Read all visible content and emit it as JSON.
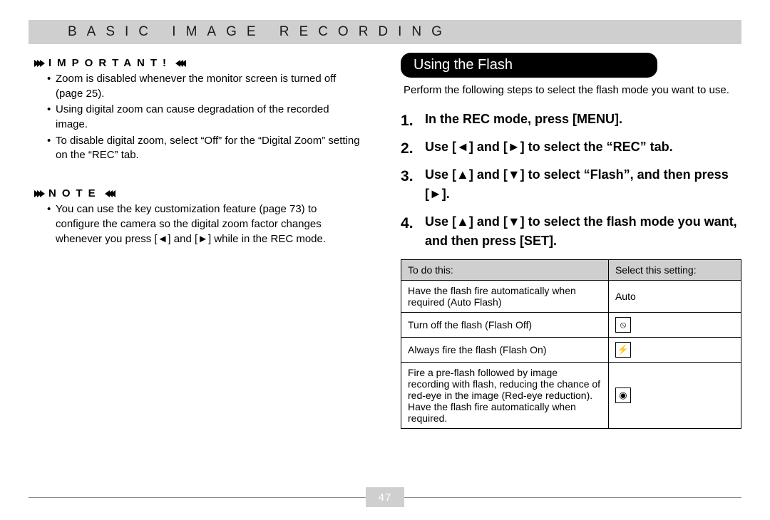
{
  "header": {
    "text": "BASIC IMAGE RECORDING"
  },
  "left": {
    "important": {
      "label": "IMPORTANT!",
      "items": [
        "Zoom is disabled whenever the monitor screen is turned off (page 25).",
        "Using digital zoom can cause degradation of the recorded image.",
        "To disable digital zoom, select “Off” for the “Digital Zoom” setting on the “REC” tab."
      ]
    },
    "note": {
      "label": "NOTE",
      "items": [
        "You can use the key customization feature (page 73) to configure the camera so the digital zoom factor changes whenever you press [◄] and [►] while in the REC mode."
      ]
    }
  },
  "right": {
    "section_title": "Using the Flash",
    "intro": "Perform the following steps to select the flash mode you want to use.",
    "steps": [
      "In the REC mode, press [MENU].",
      "Use [◄] and [►] to select the “REC” tab.",
      "Use [▲] and [▼] to select “Flash”, and then press [►].",
      "Use [▲] and [▼] to select the flash mode you want, and then press [SET]."
    ],
    "table": {
      "headers": [
        "To do this:",
        "Select this setting:"
      ],
      "rows": [
        {
          "desc": "Have the flash fire automatically when required (Auto Flash)",
          "setting_text": "Auto",
          "icon": null
        },
        {
          "desc": "Turn off the flash (Flash Off)",
          "setting_text": null,
          "icon": "flash-off"
        },
        {
          "desc": "Always fire the flash (Flash On)",
          "setting_text": null,
          "icon": "flash-on"
        },
        {
          "desc": "Fire a pre-flash followed by image recording with flash, reducing the chance of red-eye in the image (Red-eye reduction). Have the flash fire automatically when required.",
          "setting_text": null,
          "icon": "red-eye"
        }
      ]
    }
  },
  "footer": {
    "page_number": "47"
  },
  "icons": {
    "flash-off": "⦸",
    "flash-on": "⚡",
    "red-eye": "◉"
  },
  "colors": {
    "header_bg": "#cfcfcf",
    "table_header_bg": "#cfcfcf",
    "pill_bg": "#000000",
    "pill_fg": "#ffffff",
    "rule": "#8a8a8a"
  }
}
